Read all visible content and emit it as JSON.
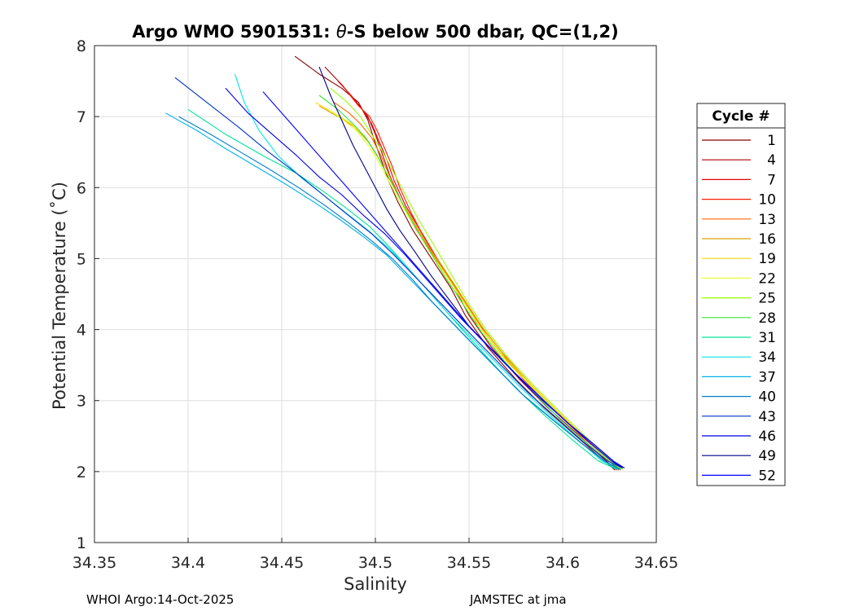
{
  "chart_data": {
    "type": "line",
    "title_prefix": "Argo WMO 5901531: ",
    "title_symbol": "θ",
    "title_suffix": "-S below 500 dbar,  QC=(1,2)",
    "xlabel": "Salinity",
    "ylabel": "Potential Temperature (˚C)",
    "xlim": [
      34.35,
      34.65
    ],
    "ylim": [
      1,
      8
    ],
    "xticks": [
      "34.35",
      "34.4",
      "34.45",
      "34.5",
      "34.55",
      "34.6",
      "34.65"
    ],
    "yticks": [
      "1",
      "2",
      "3",
      "4",
      "5",
      "6",
      "7",
      "8"
    ],
    "grid": true,
    "legend": {
      "title": "Cycle #",
      "placement": "outside-right",
      "entries": [
        "1",
        "4",
        "7",
        "10",
        "13",
        "16",
        "19",
        "22",
        "25",
        "28",
        "31",
        "34",
        "37",
        "40",
        "43",
        "46",
        "49",
        "52"
      ],
      "colors": [
        "#8b0000",
        "#b30000",
        "#e60000",
        "#ff1a00",
        "#ff6600",
        "#d9a300",
        "#ffd900",
        "#e6ff33",
        "#99ff00",
        "#33e633",
        "#00e699",
        "#00e6e6",
        "#00b3e6",
        "#0080cc",
        "#0033cc",
        "#0000e6",
        "#00008b",
        "#0000ff"
      ]
    },
    "series": [
      {
        "name": "1",
        "color": "#8b0000",
        "x": [
          34.457,
          34.47,
          34.482,
          34.491,
          34.496,
          34.499,
          34.503,
          34.507,
          34.512,
          34.52,
          34.53,
          34.54,
          34.548,
          34.56,
          34.575,
          34.59,
          34.605,
          34.62,
          34.628
        ],
        "y": [
          7.85,
          7.6,
          7.4,
          7.2,
          6.95,
          6.7,
          6.4,
          6.1,
          5.8,
          5.4,
          5.0,
          4.6,
          4.2,
          3.75,
          3.3,
          2.9,
          2.55,
          2.2,
          2.02
        ]
      },
      {
        "name": "4",
        "color": "#b30000",
        "x": [
          34.473,
          34.482,
          34.49,
          34.496,
          34.5,
          34.504,
          34.508,
          34.514,
          34.522,
          34.532,
          34.542,
          34.55,
          34.562,
          34.577,
          34.592,
          34.607,
          34.621,
          34.629
        ],
        "y": [
          7.7,
          7.45,
          7.2,
          7.0,
          6.75,
          6.45,
          6.15,
          5.8,
          5.4,
          5.0,
          4.6,
          4.2,
          3.75,
          3.3,
          2.9,
          2.55,
          2.2,
          2.02
        ]
      },
      {
        "name": "7",
        "color": "#e60000",
        "x": [
          34.48,
          34.487,
          34.493,
          34.498,
          34.502,
          34.506,
          34.51,
          34.516,
          34.524,
          34.533,
          34.543,
          34.552,
          34.564,
          34.579,
          34.594,
          34.609,
          34.623,
          34.63
        ],
        "y": [
          7.5,
          7.3,
          7.1,
          6.9,
          6.65,
          6.4,
          6.1,
          5.75,
          5.4,
          5.0,
          4.6,
          4.2,
          3.75,
          3.3,
          2.9,
          2.55,
          2.2,
          2.02
        ]
      },
      {
        "name": "10",
        "color": "#ff1a00",
        "x": [
          34.485,
          34.491,
          34.497,
          34.501,
          34.505,
          34.509,
          34.513,
          34.519,
          34.526,
          34.535,
          34.545,
          34.554,
          34.566,
          34.581,
          34.596,
          34.61,
          34.624,
          34.631
        ],
        "y": [
          7.35,
          7.15,
          7.0,
          6.8,
          6.55,
          6.3,
          6.0,
          5.65,
          5.3,
          4.9,
          4.5,
          4.1,
          3.7,
          3.25,
          2.85,
          2.5,
          2.18,
          2.02
        ]
      },
      {
        "name": "13",
        "color": "#ff6600",
        "x": [
          34.478,
          34.486,
          34.492,
          34.498,
          34.503,
          34.507,
          34.512,
          34.518,
          34.526,
          34.535,
          34.545,
          34.555,
          34.567,
          34.582,
          34.597,
          34.611,
          34.624,
          34.631
        ],
        "y": [
          7.2,
          7.05,
          6.9,
          6.7,
          6.45,
          6.2,
          5.9,
          5.6,
          5.25,
          4.9,
          4.5,
          4.1,
          3.7,
          3.25,
          2.85,
          2.5,
          2.18,
          2.02
        ]
      },
      {
        "name": "16",
        "color": "#d9a300",
        "x": [
          34.47,
          34.48,
          34.489,
          34.496,
          34.502,
          34.508,
          34.514,
          34.521,
          34.529,
          34.538,
          34.548,
          34.558,
          34.57,
          34.584,
          34.599,
          34.613,
          34.625,
          34.631
        ],
        "y": [
          7.15,
          7.0,
          6.85,
          6.65,
          6.4,
          6.1,
          5.8,
          5.5,
          5.15,
          4.8,
          4.4,
          4.0,
          3.6,
          3.2,
          2.8,
          2.45,
          2.15,
          2.03
        ]
      },
      {
        "name": "19",
        "color": "#ffd900",
        "x": [
          34.468,
          34.478,
          34.487,
          34.495,
          34.501,
          34.507,
          34.513,
          34.52,
          34.528,
          34.537,
          34.547,
          34.557,
          34.569,
          34.584,
          34.599,
          34.613,
          34.625,
          34.631
        ],
        "y": [
          7.2,
          7.05,
          6.9,
          6.7,
          6.45,
          6.15,
          5.85,
          5.5,
          5.15,
          4.8,
          4.4,
          4.0,
          3.6,
          3.2,
          2.8,
          2.45,
          2.15,
          2.03
        ]
      },
      {
        "name": "22",
        "color": "#e6ff33",
        "x": [
          34.475,
          34.483,
          34.49,
          34.496,
          34.502,
          34.508,
          34.514,
          34.521,
          34.529,
          34.538,
          34.548,
          34.558,
          34.57,
          34.585,
          34.6,
          34.614,
          34.626,
          34.632
        ],
        "y": [
          7.1,
          6.95,
          6.8,
          6.6,
          6.35,
          6.05,
          5.75,
          5.45,
          5.1,
          4.75,
          4.35,
          3.95,
          3.55,
          3.15,
          2.75,
          2.42,
          2.14,
          2.03
        ]
      },
      {
        "name": "25",
        "color": "#99ff00",
        "x": [
          34.476,
          34.485,
          34.492,
          34.498,
          34.504,
          34.51,
          34.516,
          34.523,
          34.531,
          34.54,
          34.549,
          34.559,
          34.571,
          34.585,
          34.6,
          34.614,
          34.626,
          34.632
        ],
        "y": [
          7.4,
          7.2,
          7.0,
          6.75,
          6.5,
          6.2,
          5.9,
          5.55,
          5.2,
          4.8,
          4.4,
          4.0,
          3.6,
          3.2,
          2.8,
          2.45,
          2.15,
          2.03
        ]
      },
      {
        "name": "28",
        "color": "#33e633",
        "x": [
          34.47,
          34.48,
          34.488,
          34.495,
          34.501,
          34.507,
          34.513,
          34.52,
          34.528,
          34.537,
          34.547,
          34.557,
          34.569,
          34.583,
          34.598,
          34.612,
          34.625,
          34.631
        ],
        "y": [
          7.3,
          7.1,
          6.9,
          6.7,
          6.45,
          6.15,
          5.85,
          5.5,
          5.15,
          4.75,
          4.35,
          3.95,
          3.55,
          3.15,
          2.75,
          2.42,
          2.14,
          2.03
        ]
      },
      {
        "name": "31",
        "color": "#00e699",
        "x": [
          34.4,
          34.42,
          34.44,
          34.458,
          34.472,
          34.485,
          34.497,
          34.508,
          34.518,
          34.528,
          34.538,
          34.548,
          34.56,
          34.574,
          34.59,
          34.605,
          34.619,
          34.629
        ],
        "y": [
          7.1,
          6.75,
          6.45,
          6.2,
          5.95,
          5.7,
          5.45,
          5.15,
          4.85,
          4.55,
          4.25,
          3.95,
          3.6,
          3.2,
          2.8,
          2.45,
          2.15,
          2.03
        ]
      },
      {
        "name": "34",
        "color": "#00e6e6",
        "x": [
          34.425,
          34.43,
          34.438,
          34.448,
          34.46,
          34.472,
          34.484,
          34.496,
          34.507,
          34.518,
          34.528,
          34.538,
          34.549,
          34.562,
          34.577,
          34.593,
          34.608,
          34.621,
          34.63
        ],
        "y": [
          7.6,
          7.2,
          6.8,
          6.45,
          6.15,
          5.9,
          5.65,
          5.4,
          5.15,
          4.85,
          4.55,
          4.25,
          3.95,
          3.6,
          3.2,
          2.8,
          2.45,
          2.15,
          2.03
        ]
      },
      {
        "name": "37",
        "color": "#00b3e6",
        "x": [
          34.388,
          34.405,
          34.42,
          34.436,
          34.452,
          34.467,
          34.481,
          34.494,
          34.506,
          34.517,
          34.528,
          34.539,
          34.55,
          34.563,
          34.578,
          34.594,
          34.609,
          34.622,
          34.63
        ],
        "y": [
          7.05,
          6.8,
          6.55,
          6.3,
          6.05,
          5.8,
          5.55,
          5.3,
          5.05,
          4.75,
          4.45,
          4.15,
          3.85,
          3.5,
          3.1,
          2.75,
          2.42,
          2.15,
          2.03
        ]
      },
      {
        "name": "40",
        "color": "#0080cc",
        "x": [
          34.395,
          34.412,
          34.428,
          34.444,
          34.459,
          34.473,
          34.486,
          34.498,
          34.509,
          34.52,
          34.53,
          34.541,
          34.552,
          34.565,
          34.58,
          34.596,
          34.61,
          34.623,
          34.631
        ],
        "y": [
          7.0,
          6.75,
          6.5,
          6.25,
          6.0,
          5.75,
          5.5,
          5.25,
          5.0,
          4.7,
          4.4,
          4.1,
          3.8,
          3.45,
          3.05,
          2.7,
          2.4,
          2.14,
          2.03
        ]
      },
      {
        "name": "43",
        "color": "#0033cc",
        "x": [
          34.393,
          34.41,
          34.427,
          34.443,
          34.458,
          34.472,
          34.486,
          34.498,
          34.51,
          34.521,
          34.532,
          34.543,
          34.554,
          34.567,
          34.582,
          34.597,
          34.611,
          34.624,
          34.632
        ],
        "y": [
          7.55,
          7.2,
          6.85,
          6.5,
          6.2,
          5.9,
          5.6,
          5.35,
          5.05,
          4.75,
          4.45,
          4.15,
          3.85,
          3.5,
          3.1,
          2.75,
          2.42,
          2.15,
          2.05
        ]
      },
      {
        "name": "46",
        "color": "#0000e6",
        "x": [
          34.42,
          34.432,
          34.445,
          34.458,
          34.47,
          34.482,
          34.494,
          34.505,
          34.516,
          34.526,
          34.536,
          34.546,
          34.557,
          34.57,
          34.585,
          34.6,
          34.614,
          34.626,
          34.632
        ],
        "y": [
          7.4,
          7.05,
          6.75,
          6.45,
          6.15,
          5.9,
          5.6,
          5.35,
          5.05,
          4.75,
          4.45,
          4.15,
          3.85,
          3.5,
          3.1,
          2.75,
          2.42,
          2.15,
          2.05
        ]
      },
      {
        "name": "49",
        "color": "#00008b",
        "x": [
          34.47,
          34.476,
          34.482,
          34.488,
          34.494,
          34.5,
          34.506,
          34.513,
          34.521,
          34.53,
          34.54,
          34.55,
          34.561,
          34.574,
          34.588,
          34.602,
          34.616,
          34.627,
          34.632
        ],
        "y": [
          7.7,
          7.3,
          6.95,
          6.6,
          6.3,
          6.0,
          5.7,
          5.4,
          5.1,
          4.75,
          4.4,
          4.05,
          3.75,
          3.4,
          3.05,
          2.7,
          2.4,
          2.15,
          2.05
        ]
      },
      {
        "name": "52",
        "color": "#0000ff",
        "x": [
          34.44,
          34.45,
          34.46,
          34.47,
          34.48,
          34.49,
          34.5,
          34.51,
          34.52,
          34.53,
          34.54,
          34.55,
          34.561,
          34.574,
          34.588,
          34.602,
          34.616,
          34.627,
          34.633
        ],
        "y": [
          7.35,
          7.05,
          6.75,
          6.45,
          6.15,
          5.85,
          5.55,
          5.25,
          4.95,
          4.65,
          4.35,
          4.05,
          3.75,
          3.4,
          3.05,
          2.7,
          2.4,
          2.15,
          2.05
        ]
      }
    ]
  },
  "footer": {
    "left": "WHOI Argo:14-Oct-2025",
    "right": "JAMSTEC at jma"
  }
}
